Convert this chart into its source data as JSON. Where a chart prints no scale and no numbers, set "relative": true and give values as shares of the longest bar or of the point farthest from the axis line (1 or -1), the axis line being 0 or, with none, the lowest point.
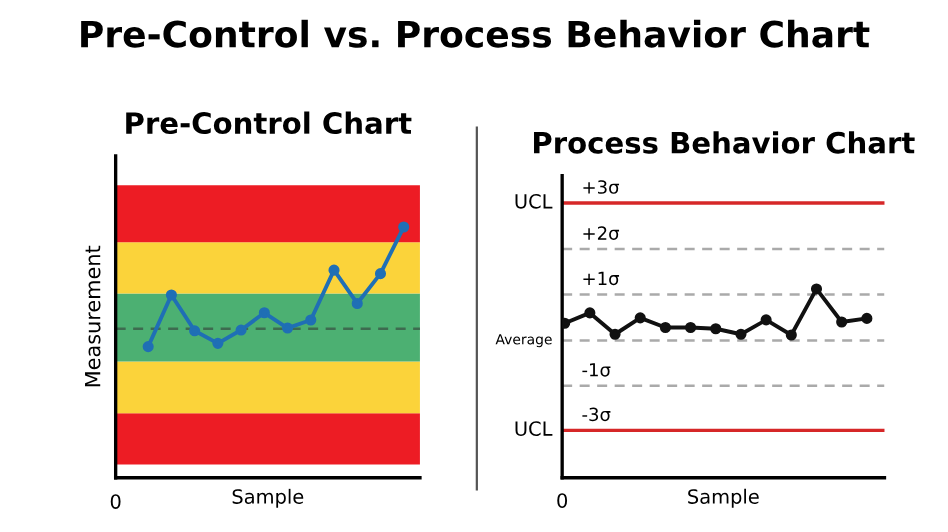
{
  "chart_data": [
    {
      "type": "line",
      "title": "Pre-Control Chart",
      "xlabel": "Sample",
      "ylabel": "Measurement",
      "relative": true,
      "marker": "circle",
      "annotations": [
        "Pre-Control vs. Process Behavior Chart",
        {
          "text": "0"
        }
      ],
      "categories": [
        null,
        null,
        null,
        null,
        null,
        null,
        null,
        null,
        null,
        null,
        null,
        null
      ],
      "series": [
        {
          "color": "#1f6fb5",
          "values": [
            0.523,
            0.729,
            0.586,
            0.536,
            0.589,
            0.658,
            0.597,
            0.629,
            0.828,
            0.695,
            0.814,
            1.0
          ]
        }
      ],
      "bands": [
        {
          "axis": "y",
          "from": 0.053,
          "to": 0.257,
          "color": "#ed1c24"
        },
        {
          "axis": "y",
          "from": 0.257,
          "to": 0.464,
          "color": "#fbd33a"
        },
        {
          "axis": "y",
          "from": 0.464,
          "to": 0.735,
          "color": "#4cb072"
        },
        {
          "axis": "y",
          "from": 0.735,
          "to": 0.939,
          "color": "#fbd33a"
        },
        {
          "axis": "y",
          "from": 0.939,
          "to": 1.167,
          "color": "#ed1c24"
        }
      ],
      "ref_lines": [
        {
          "axis": "y",
          "value": 0.594,
          "color": "#3d6b4f",
          "line_style": "dashed"
        }
      ]
    },
    {
      "type": "line",
      "title": "Process Behavior Chart",
      "xlabel": "Sample",
      "relative": true,
      "marker": "circle",
      "annotations": [
        {
          "text": "0"
        },
        "UCL",
        "Average",
        "UCL"
      ],
      "categories": [
        null,
        null,
        null,
        null,
        null,
        null,
        null,
        null,
        null,
        null,
        null,
        null,
        null
      ],
      "series": [
        {
          "color": "#111111",
          "values": [
            0.818,
            0.873,
            0.76,
            0.847,
            0.796,
            0.796,
            0.789,
            0.76,
            0.836,
            0.756,
            1.0,
            0.825,
            0.844
          ]
        }
      ],
      "ref_lines": [
        {
          "axis": "y",
          "value": 1.455,
          "label": "+3σ",
          "color": "#d62728",
          "line_style": "solid"
        },
        {
          "axis": "y",
          "value": 1.211,
          "label": "+2σ",
          "color": "#aaaaaa",
          "line_style": "dashed"
        },
        {
          "axis": "y",
          "value": 0.971,
          "label": "+1σ",
          "color": "#aaaaaa",
          "line_style": "dashed"
        },
        {
          "axis": "y",
          "value": 0.727,
          "color": "#aaaaaa",
          "line_style": "dashed"
        },
        {
          "axis": "y",
          "value": 0.487,
          "label": "-1σ",
          "color": "#aaaaaa",
          "line_style": "dashed"
        },
        {
          "axis": "y",
          "value": 0.251,
          "label": "-3σ",
          "color": "#d62728",
          "line_style": "solid"
        }
      ]
    }
  ]
}
